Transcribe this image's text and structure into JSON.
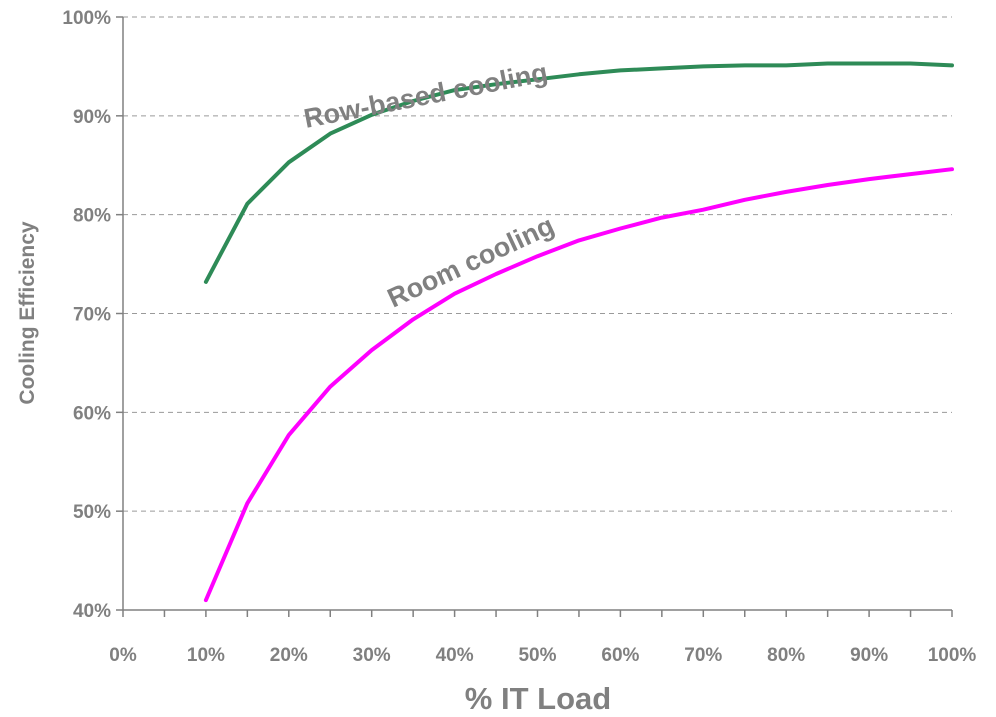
{
  "chart_data": {
    "type": "line",
    "title": "",
    "xlabel": "% IT Load",
    "ylabel": "Cooling Efficiency",
    "xlim": [
      0,
      100
    ],
    "ylim": [
      40,
      100
    ],
    "xticks": [
      0,
      10,
      20,
      30,
      40,
      50,
      60,
      70,
      80,
      90,
      100
    ],
    "xtick_labels": [
      "0%",
      "10%",
      "20%",
      "30%",
      "40%",
      "50%",
      "60%",
      "70%",
      "80%",
      "90%",
      "100%"
    ],
    "yticks": [
      40,
      50,
      60,
      70,
      80,
      90,
      100
    ],
    "ytick_labels": [
      "40%",
      "50%",
      "60%",
      "70%",
      "80%",
      "90%",
      "100%"
    ],
    "grid": "horizontal dashed",
    "legend": "none (series labelled inline)",
    "series": [
      {
        "name": "Row-based cooling",
        "color": "#2e8b57",
        "x": [
          10,
          15,
          20,
          25,
          30,
          35,
          40,
          45,
          50,
          55,
          60,
          65,
          70,
          75,
          80,
          85,
          90,
          95,
          100
        ],
        "y": [
          73.2,
          81.1,
          85.3,
          88.2,
          90.1,
          91.5,
          92.6,
          93.2,
          93.7,
          94.2,
          94.6,
          94.8,
          95.0,
          95.1,
          95.1,
          95.3,
          95.3,
          95.3,
          95.1
        ]
      },
      {
        "name": "Room cooling",
        "color": "#ff00ff",
        "x": [
          10,
          15,
          20,
          25,
          30,
          35,
          40,
          45,
          50,
          55,
          60,
          65,
          70,
          75,
          80,
          85,
          90,
          95,
          100
        ],
        "y": [
          41.0,
          50.8,
          57.7,
          62.6,
          66.3,
          69.4,
          72.0,
          74.0,
          75.8,
          77.4,
          78.6,
          79.7,
          80.5,
          81.5,
          82.3,
          83.0,
          83.6,
          84.1,
          84.6
        ]
      }
    ]
  }
}
